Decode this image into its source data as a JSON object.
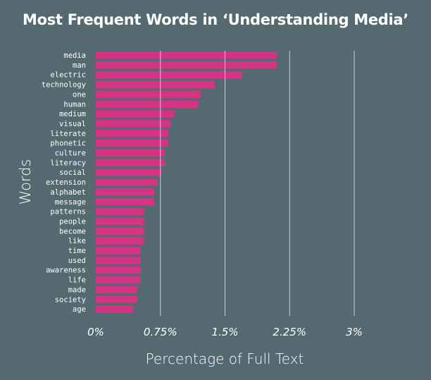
{
  "chart_data": {
    "type": "bar",
    "orientation": "horizontal",
    "title": "Most Frequent Words in ‘Understanding Media’",
    "xlabel": "Percentage of Full Text",
    "ylabel": "Words",
    "xlim": [
      0,
      3
    ],
    "xticks": [
      {
        "value": 0,
        "label": "0%"
      },
      {
        "value": 0.75,
        "label": "0.75%"
      },
      {
        "value": 1.5,
        "label": "1.5%"
      },
      {
        "value": 2.25,
        "label": "2.25%"
      },
      {
        "value": 3,
        "label": "3%"
      }
    ],
    "grid": "vertical",
    "categories": [
      "media",
      "man",
      "electric",
      "technology",
      "one",
      "human",
      "medium",
      "visual",
      "literate",
      "phonetic",
      "culture",
      "literacy",
      "social",
      "extension",
      "alphabet",
      "message",
      "patterns",
      "people",
      "become",
      "like",
      "time",
      "used",
      "awareness",
      "life",
      "made",
      "society",
      "age"
    ],
    "values": [
      2.1,
      2.1,
      1.7,
      1.38,
      1.22,
      1.19,
      0.91,
      0.87,
      0.84,
      0.84,
      0.8,
      0.8,
      0.76,
      0.72,
      0.68,
      0.68,
      0.56,
      0.56,
      0.56,
      0.56,
      0.52,
      0.52,
      0.52,
      0.52,
      0.48,
      0.48,
      0.44
    ]
  },
  "colors": {
    "background": "#546a70",
    "bar": "#d63384",
    "grid": "#c8d0d2",
    "text": "#ffffff"
  }
}
